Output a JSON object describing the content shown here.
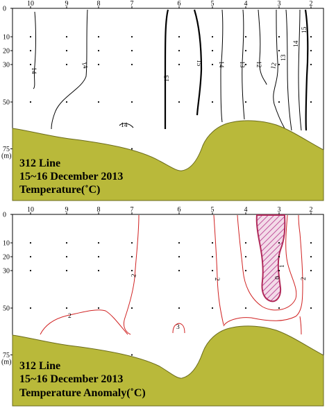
{
  "colors": {
    "terrain": "#b9b93a",
    "terrain_edge": "#6b6b1c",
    "temp_contour": "#000000",
    "anomaly_contour": "#d02020",
    "hatch_edge": "#b02a5a",
    "hatch_line": "#c0509a"
  },
  "chart_data": [
    {
      "type": "contour",
      "title_lines": [
        "312 Line",
        "15~16 December 2013",
        "Temperature(˚C)"
      ],
      "x": {
        "stations": [
          "10",
          "9",
          "8",
          "7",
          "6",
          "5",
          "4",
          "3",
          "2"
        ],
        "direction": "decreasing"
      },
      "y": {
        "depth_ticks": [
          0,
          10,
          20,
          30,
          50,
          75
        ],
        "unit_label": "(m)",
        "range": [
          0,
          90
        ],
        "inverted": true
      },
      "grid_points": true,
      "contour_labels": [
        "14",
        "14",
        "14",
        "15",
        "15",
        "14",
        "13",
        "12",
        "12",
        "13",
        "14",
        "15"
      ],
      "contour_levels": [
        12,
        13,
        14,
        15
      ],
      "bottom_terrain": true
    },
    {
      "type": "contour",
      "title_lines": [
        "312 Line",
        "15~16 December 2013",
        "Temperature Anomaly(˚C)"
      ],
      "x": {
        "stations": [
          "10",
          "9",
          "8",
          "7",
          "6",
          "5",
          "4",
          "3",
          "2"
        ],
        "direction": "decreasing"
      },
      "y": {
        "depth_ticks": [
          0,
          10,
          20,
          30,
          50,
          75
        ],
        "unit_label": "(m)",
        "range": [
          0,
          90
        ],
        "inverted": true
      },
      "grid_points": true,
      "contour_labels": [
        "2",
        "2",
        "3",
        "2",
        "0",
        "1",
        "2"
      ],
      "contour_levels": [
        0,
        1,
        2,
        3
      ],
      "shaded_region": "hatched area where anomaly < 0",
      "bottom_terrain": true
    }
  ]
}
